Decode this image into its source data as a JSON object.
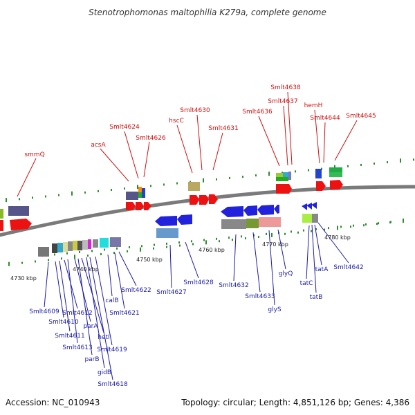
{
  "title": "Stenotrophomonas maltophilia K279a, complete genome",
  "accession": "Accession: NC_010943",
  "topology": "Topology: circular; Length: 4,851,126 bp; Genes: 4,386",
  "colors": {
    "upper_label": "#cc1111",
    "lower_label": "#1a1aa8",
    "backbone": "#777777",
    "tick": "#2e8b2e"
  },
  "kbp_labels": [
    "4730 kbp",
    "4740 kbp",
    "4750 kbp",
    "4760 kbp",
    "4770 kbp",
    "4780 kbp"
  ],
  "upper_gene_labels": [
    "smmQ",
    "acsA",
    "Smlt4624",
    "Smlt4626",
    "hscC",
    "Smlt4630",
    "Smlt4631",
    "Smlt4636",
    "Smlt4637",
    "Smlt4638",
    "hemH",
    "Smlt4644",
    "Smlt4645"
  ],
  "lower_gene_labels": [
    "Smlt4609",
    "Smlt4610",
    "Smlt4611",
    "Smlt4612",
    "Smlt4613",
    "parA",
    "parB",
    "hetI",
    "gidB",
    "Smlt4618",
    "Smlt4619",
    "calB",
    "Smlt4621",
    "Smlt4622",
    "Smlt4627",
    "Smlt4628",
    "Smlt4632",
    "Smlt4633",
    "glyS",
    "glyQ",
    "tatC",
    "tatB",
    "tatA",
    "Smlt4642"
  ]
}
